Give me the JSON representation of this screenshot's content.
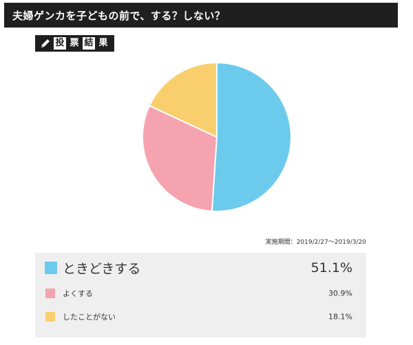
{
  "header": {
    "title": "夫婦ゲンカを子どもの前で、する？しない？",
    "badge_chars": [
      "投",
      "票",
      "結",
      "果"
    ],
    "badge_icon": "pencil-icon"
  },
  "period": "実施期間：2019/2/27〜2019/3/20",
  "chart_data": {
    "type": "pie",
    "title": "夫婦ゲンカを子どもの前で、する？しない？",
    "categories": [
      "ときどきする",
      "よくする",
      "したことがない"
    ],
    "values": [
      51.1,
      30.9,
      18.1
    ],
    "value_labels": [
      "51.1%",
      "30.9%",
      "18.1%"
    ],
    "colors": [
      "#6ccaed",
      "#f6a3b0",
      "#f9cf6e"
    ],
    "legend_position": "bottom",
    "start_angle_deg": 0,
    "direction": "clockwise"
  }
}
